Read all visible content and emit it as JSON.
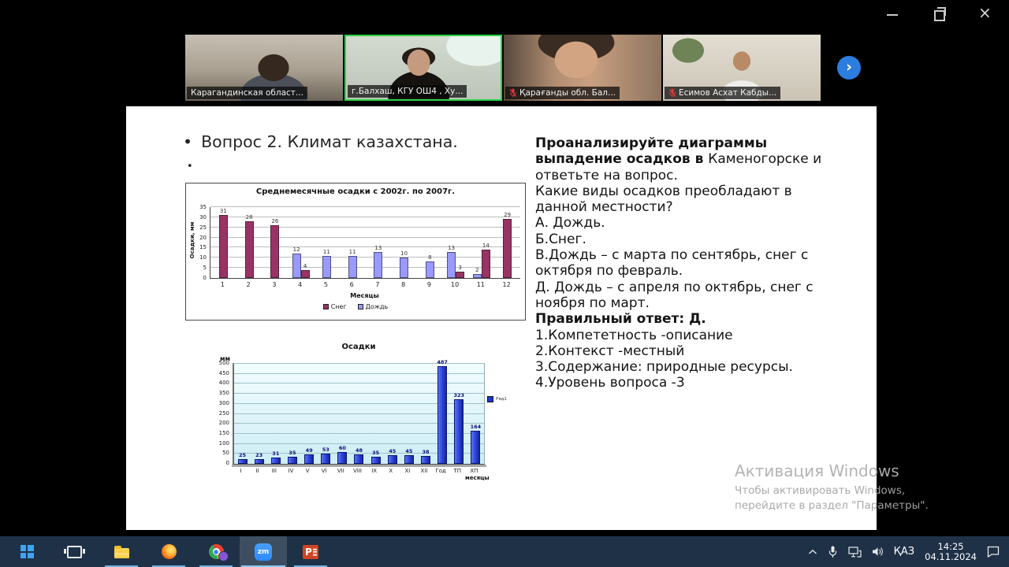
{
  "window_controls": {
    "close_glyph": "×"
  },
  "video_strip": {
    "participants": [
      {
        "name": "Карагандинская област...",
        "muted": false,
        "active": false
      },
      {
        "name": "г.Балхаш, КГУ ОШ4 , Ху...",
        "muted": false,
        "active": true
      },
      {
        "name": "Қарағанды обл. Бал...",
        "muted": true,
        "active": false
      },
      {
        "name": "Есимов Асхат Кабды...",
        "muted": true,
        "active": false
      }
    ],
    "next_button_glyph": "›"
  },
  "slide": {
    "bullet_glyph": "•",
    "title": "Вопрос 2. Климат казахстана.",
    "question_lines": [
      [
        {
          "t": "Проанализируйте диаграммы",
          "b": 1
        }
      ],
      [
        {
          "t": "выпадение осадков в ",
          "b": 1
        },
        {
          "t": "Каменогорске и",
          "b": 0
        }
      ],
      [
        {
          "t": "ответьте на вопрос.",
          "b": 0
        }
      ],
      [
        {
          "t": "Какие виды осадков преобладают в",
          "b": 0
        }
      ],
      [
        {
          "t": "данной местности?",
          "b": 0
        }
      ],
      [
        {
          "t": "А. Дождь.",
          "b": 0
        }
      ],
      [
        {
          "t": "Б.Снег.",
          "b": 0
        }
      ],
      [
        {
          "t": "В.Дождь – с марта по сентябрь, снег с",
          "b": 0
        }
      ],
      [
        {
          "t": "октября по февраль.",
          "b": 0
        }
      ],
      [
        {
          "t": "Д. Дождь – с апреля по октябрь, снег с",
          "b": 0
        }
      ],
      [
        {
          "t": "ноября по март.",
          "b": 0
        }
      ],
      [
        {
          "t": "Правильный ответ: Д.",
          "b": 1
        }
      ],
      [
        {
          "t": "1.Компететность -описание",
          "b": 0
        }
      ],
      [
        {
          "t": "2.Контекст -местный",
          "b": 0
        }
      ],
      [
        {
          "t": "3.Содержание: природные ресурсы.",
          "b": 0
        }
      ],
      [
        {
          "t": "4.Уровень вопроса -3",
          "b": 0
        }
      ]
    ]
  },
  "chart_data": [
    {
      "type": "bar",
      "title": "Среднемесячные осадки с 2002г. по 2007г.",
      "categories": [
        "1",
        "2",
        "3",
        "4",
        "5",
        "6",
        "7",
        "8",
        "9",
        "10",
        "11",
        "12"
      ],
      "series": [
        {
          "name": "Снег",
          "color": "#993366",
          "values": [
            31,
            28,
            26,
            4,
            null,
            null,
            null,
            null,
            null,
            3,
            14,
            29
          ]
        },
        {
          "name": "Дождь",
          "color": "#9999ff",
          "values": [
            null,
            null,
            null,
            12,
            11,
            11,
            13,
            10,
            8,
            13,
            2,
            null
          ]
        }
      ],
      "draw_order": [
        1,
        0
      ],
      "ylabel": "Осадки, мм",
      "xlabel": "Месяцы",
      "ylim": [
        0,
        35
      ],
      "ytick": 5,
      "legend_position": "bottom",
      "grid": true
    },
    {
      "type": "bar",
      "title": "Осадки",
      "categories": [
        "I",
        "II",
        "III",
        "IV",
        "V",
        "VI",
        "VII",
        "VIII",
        "IX",
        "X",
        "XI",
        "XII",
        "Год",
        "ТП",
        "ХП"
      ],
      "values": [
        25,
        23,
        31,
        35,
        49,
        53,
        60,
        48,
        35,
        45,
        45,
        38,
        487,
        323,
        164
      ],
      "bar_color": "#2038cc",
      "ylabel": "мм",
      "xlabel": "месяцы",
      "ylim": [
        0,
        500
      ],
      "ytick": 50,
      "legend": "Ряд1",
      "legend_position": "right",
      "grid": true
    }
  ],
  "watermark": {
    "line1": "Активация Windows",
    "line2": "Чтобы активировать Windows,",
    "line3": "перейдите в раздел \"Параметры\"."
  },
  "taskbar": {
    "apps": [
      {
        "id": "start",
        "running": false,
        "active": false
      },
      {
        "id": "task-view",
        "running": false,
        "active": false
      },
      {
        "id": "file-explorer",
        "running": true,
        "active": false
      },
      {
        "id": "firefox",
        "running": true,
        "active": false
      },
      {
        "id": "chrome",
        "running": true,
        "active": false
      },
      {
        "id": "zoom",
        "label": "zm",
        "running": true,
        "active": true
      },
      {
        "id": "powerpoint",
        "label": "P",
        "running": true,
        "active": false
      }
    ],
    "tray": {
      "language": "ҚАЗ",
      "time": "14:25",
      "date": "04.11.2024"
    }
  }
}
